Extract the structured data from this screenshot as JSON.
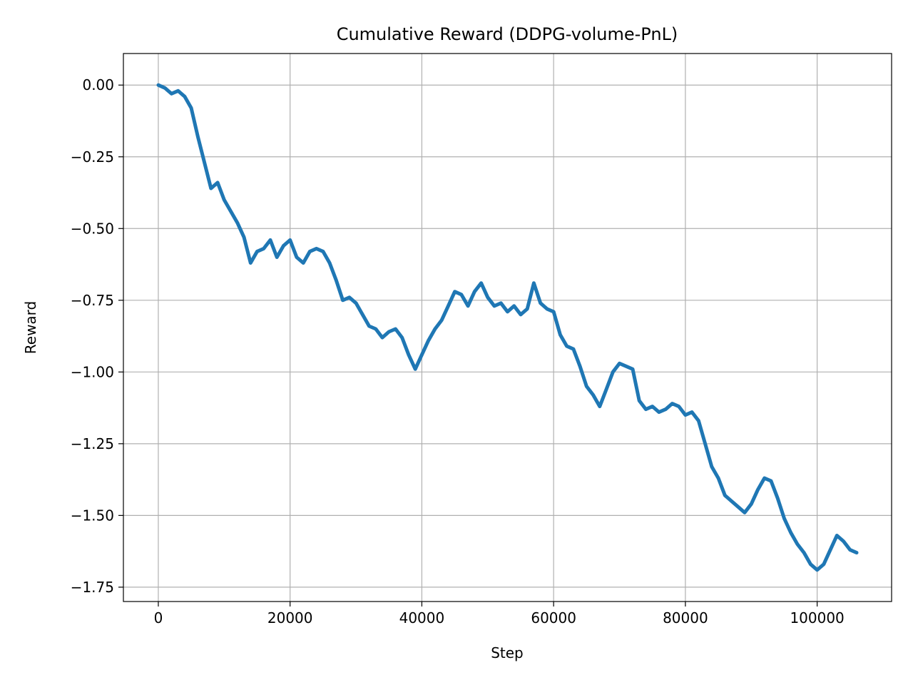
{
  "chart_data": {
    "type": "line",
    "title": "Cumulative Reward (DDPG-volume-PnL)",
    "xlabel": "Step",
    "ylabel": "Reward",
    "xlim": [
      -5300,
      111300
    ],
    "ylim": [
      -1.8,
      0.11
    ],
    "xticks": [
      0,
      20000,
      40000,
      60000,
      80000,
      100000
    ],
    "xtick_labels": [
      "0",
      "20000",
      "40000",
      "60000",
      "80000",
      "100000"
    ],
    "yticks": [
      0.0,
      -0.25,
      -0.5,
      -0.75,
      -1.0,
      -1.25,
      -1.5,
      -1.75
    ],
    "ytick_labels": [
      "0.00",
      "−0.25",
      "−0.50",
      "−0.75",
      "−1.00",
      "−1.25",
      "−1.50",
      "−1.75"
    ],
    "grid": true,
    "line_color": "#1f77b4",
    "series": [
      {
        "x": [
          0,
          1000,
          2000,
          3000,
          4000,
          5000,
          6000,
          7000,
          8000,
          9000,
          10000,
          11000,
          12000,
          13000,
          14000,
          15000,
          16000,
          17000,
          18000,
          19000,
          20000,
          21000,
          22000,
          23000,
          24000,
          25000,
          26000,
          27000,
          28000,
          29000,
          30000,
          31000,
          32000,
          33000,
          34000,
          35000,
          36000,
          37000,
          38000,
          39000,
          40000,
          41000,
          42000,
          43000,
          44000,
          45000,
          46000,
          47000,
          48000,
          49000,
          50000,
          51000,
          52000,
          53000,
          54000,
          55000,
          56000,
          57000,
          58000,
          59000,
          60000,
          61000,
          62000,
          63000,
          64000,
          65000,
          66000,
          67000,
          68000,
          69000,
          70000,
          71000,
          72000,
          73000,
          74000,
          75000,
          76000,
          77000,
          78000,
          79000,
          80000,
          81000,
          82000,
          83000,
          84000,
          85000,
          86000,
          87000,
          88000,
          89000,
          90000,
          91000,
          92000,
          93000,
          94000,
          95000,
          96000,
          97000,
          98000,
          99000,
          100000,
          101000,
          102000,
          103000,
          104000,
          105000,
          106000
        ],
        "values": [
          0.0,
          -0.01,
          -0.03,
          -0.02,
          -0.04,
          -0.08,
          -0.18,
          -0.27,
          -0.36,
          -0.34,
          -0.4,
          -0.44,
          -0.48,
          -0.53,
          -0.62,
          -0.58,
          -0.57,
          -0.54,
          -0.6,
          -0.56,
          -0.54,
          -0.6,
          -0.62,
          -0.58,
          -0.57,
          -0.58,
          -0.62,
          -0.68,
          -0.75,
          -0.74,
          -0.76,
          -0.8,
          -0.84,
          -0.85,
          -0.88,
          -0.86,
          -0.85,
          -0.88,
          -0.94,
          -0.99,
          -0.94,
          -0.89,
          -0.85,
          -0.82,
          -0.77,
          -0.72,
          -0.73,
          -0.77,
          -0.72,
          -0.69,
          -0.74,
          -0.77,
          -0.76,
          -0.79,
          -0.77,
          -0.8,
          -0.78,
          -0.69,
          -0.76,
          -0.78,
          -0.79,
          -0.87,
          -0.91,
          -0.92,
          -0.98,
          -1.05,
          -1.08,
          -1.12,
          -1.06,
          -1.0,
          -0.97,
          -0.98,
          -0.99,
          -1.1,
          -1.13,
          -1.12,
          -1.14,
          -1.13,
          -1.11,
          -1.12,
          -1.15,
          -1.14,
          -1.17,
          -1.25,
          -1.33,
          -1.37,
          -1.43,
          -1.45,
          -1.47,
          -1.49,
          -1.46,
          -1.41,
          -1.37,
          -1.38,
          -1.44,
          -1.51,
          -1.56,
          -1.6,
          -1.63,
          -1.67,
          -1.69,
          -1.67,
          -1.62,
          -1.57,
          -1.59,
          -1.62,
          -1.63
        ]
      }
    ]
  }
}
